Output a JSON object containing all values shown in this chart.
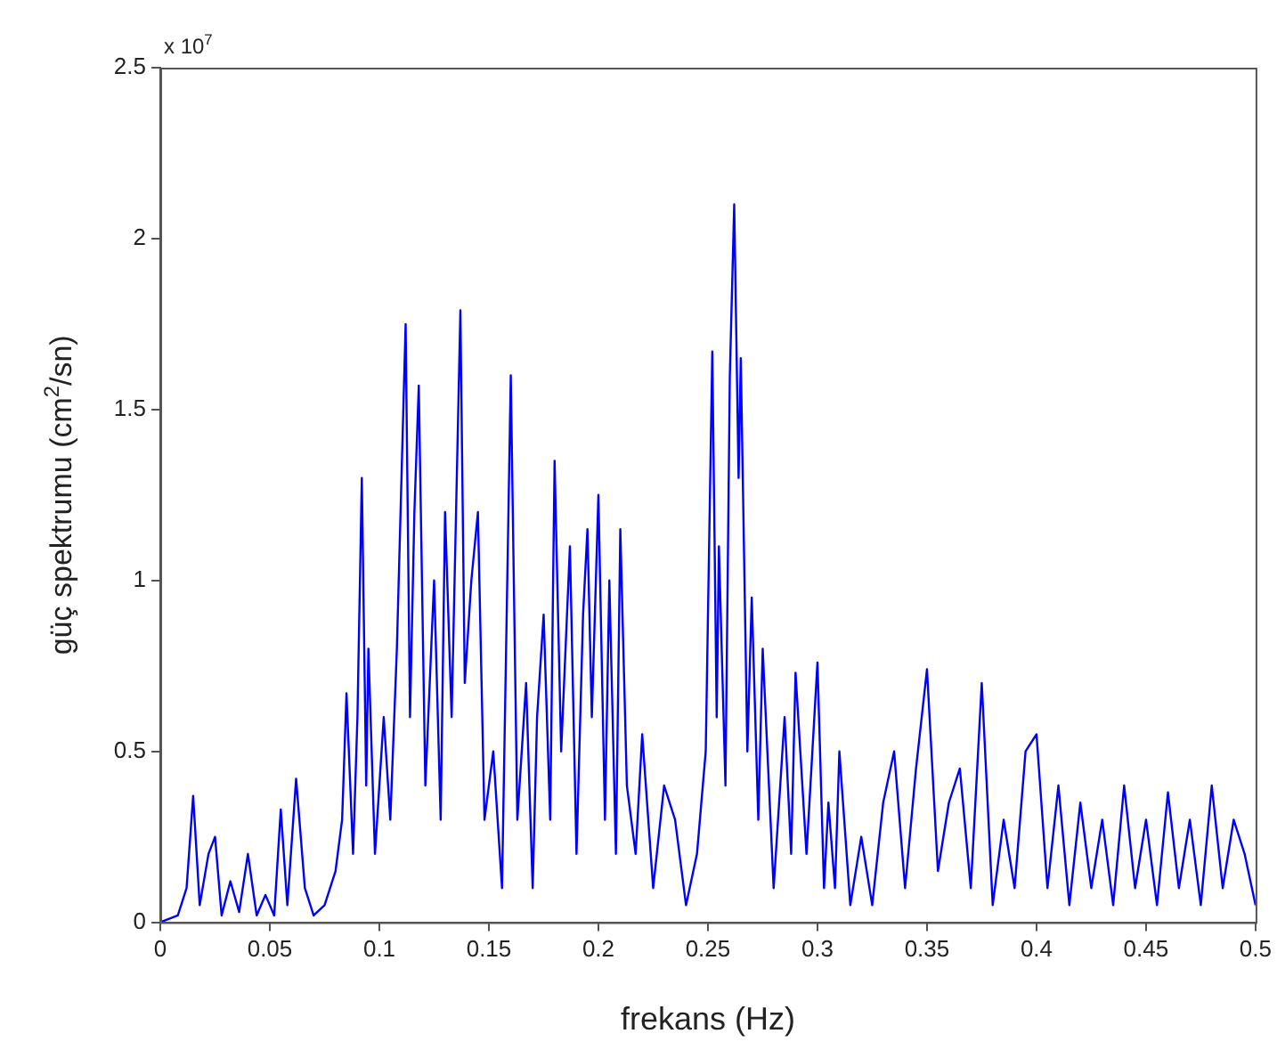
{
  "chart_data": {
    "type": "line",
    "xlabel": "frekans (Hz)",
    "ylabel": "güç spektrumu (cm$^{2}$/sn)",
    "annotations": [
      "x 10$^{7}$"
    ],
    "xlim": [
      0,
      0.5
    ],
    "xticks": [
      0,
      0.05,
      0.1,
      0.15,
      0.2,
      0.25,
      0.3,
      0.35,
      0.4,
      0.45,
      0.5
    ],
    "ylim": [
      0,
      2.5
    ],
    "yticks": [
      0,
      0.5,
      1,
      1.5,
      2,
      2.5
    ],
    "grid": false,
    "legend": false,
    "marker": "none",
    "line_style": "solid",
    "series": [
      {
        "color": "#0000ff",
        "x": [
          0,
          0.008,
          0.012,
          0.015,
          0.018,
          0.022,
          0.025,
          0.028,
          0.032,
          0.036,
          0.04,
          0.044,
          0.048,
          0.052,
          0.055,
          0.058,
          0.062,
          0.066,
          0.07,
          0.075,
          0.08,
          0.083,
          0.085,
          0.088,
          0.09,
          0.092,
          0.094,
          0.095,
          0.098,
          0.102,
          0.105,
          0.108,
          0.112,
          0.114,
          0.116,
          0.118,
          0.121,
          0.125,
          0.128,
          0.13,
          0.133,
          0.137,
          0.139,
          0.142,
          0.145,
          0.148,
          0.152,
          0.156,
          0.16,
          0.163,
          0.167,
          0.17,
          0.172,
          0.175,
          0.178,
          0.18,
          0.183,
          0.187,
          0.19,
          0.193,
          0.195,
          0.197,
          0.2,
          0.203,
          0.205,
          0.208,
          0.21,
          0.213,
          0.217,
          0.22,
          0.225,
          0.23,
          0.235,
          0.24,
          0.245,
          0.249,
          0.252,
          0.254,
          0.255,
          0.258,
          0.26,
          0.262,
          0.264,
          0.265,
          0.268,
          0.27,
          0.273,
          0.275,
          0.28,
          0.285,
          0.288,
          0.29,
          0.295,
          0.3,
          0.303,
          0.305,
          0.308,
          0.31,
          0.315,
          0.32,
          0.325,
          0.33,
          0.335,
          0.34,
          0.345,
          0.35,
          0.355,
          0.36,
          0.365,
          0.37,
          0.375,
          0.38,
          0.385,
          0.39,
          0.395,
          0.4,
          0.405,
          0.41,
          0.415,
          0.42,
          0.425,
          0.43,
          0.435,
          0.44,
          0.445,
          0.45,
          0.455,
          0.46,
          0.465,
          0.47,
          0.475,
          0.48,
          0.485,
          0.49,
          0.495,
          0.5
        ],
        "values": [
          0,
          0.02,
          0.1,
          0.37,
          0.05,
          0.2,
          0.25,
          0.02,
          0.12,
          0.03,
          0.2,
          0.02,
          0.08,
          0.02,
          0.33,
          0.05,
          0.42,
          0.1,
          0.02,
          0.05,
          0.15,
          0.3,
          0.67,
          0.2,
          0.6,
          1.3,
          0.4,
          0.8,
          0.2,
          0.6,
          0.3,
          0.8,
          1.75,
          0.6,
          1.2,
          1.57,
          0.4,
          1.0,
          0.3,
          1.2,
          0.6,
          1.79,
          0.7,
          1.0,
          1.2,
          0.3,
          0.5,
          0.1,
          1.6,
          0.3,
          0.7,
          0.1,
          0.6,
          0.9,
          0.3,
          1.35,
          0.5,
          1.1,
          0.2,
          0.9,
          1.15,
          0.6,
          1.25,
          0.3,
          1.0,
          0.2,
          1.15,
          0.4,
          0.2,
          0.55,
          0.1,
          0.4,
          0.3,
          0.05,
          0.2,
          0.5,
          1.67,
          0.6,
          1.1,
          0.4,
          1.6,
          2.1,
          1.3,
          1.65,
          0.5,
          0.95,
          0.3,
          0.8,
          0.1,
          0.6,
          0.2,
          0.73,
          0.2,
          0.76,
          0.1,
          0.35,
          0.1,
          0.5,
          0.05,
          0.25,
          0.05,
          0.35,
          0.5,
          0.1,
          0.45,
          0.74,
          0.15,
          0.35,
          0.45,
          0.1,
          0.7,
          0.05,
          0.3,
          0.1,
          0.5,
          0.55,
          0.1,
          0.4,
          0.05,
          0.35,
          0.1,
          0.3,
          0.05,
          0.4,
          0.1,
          0.3,
          0.05,
          0.38,
          0.1,
          0.3,
          0.05,
          0.4,
          0.1,
          0.3,
          0.2,
          0.05
        ]
      }
    ]
  }
}
